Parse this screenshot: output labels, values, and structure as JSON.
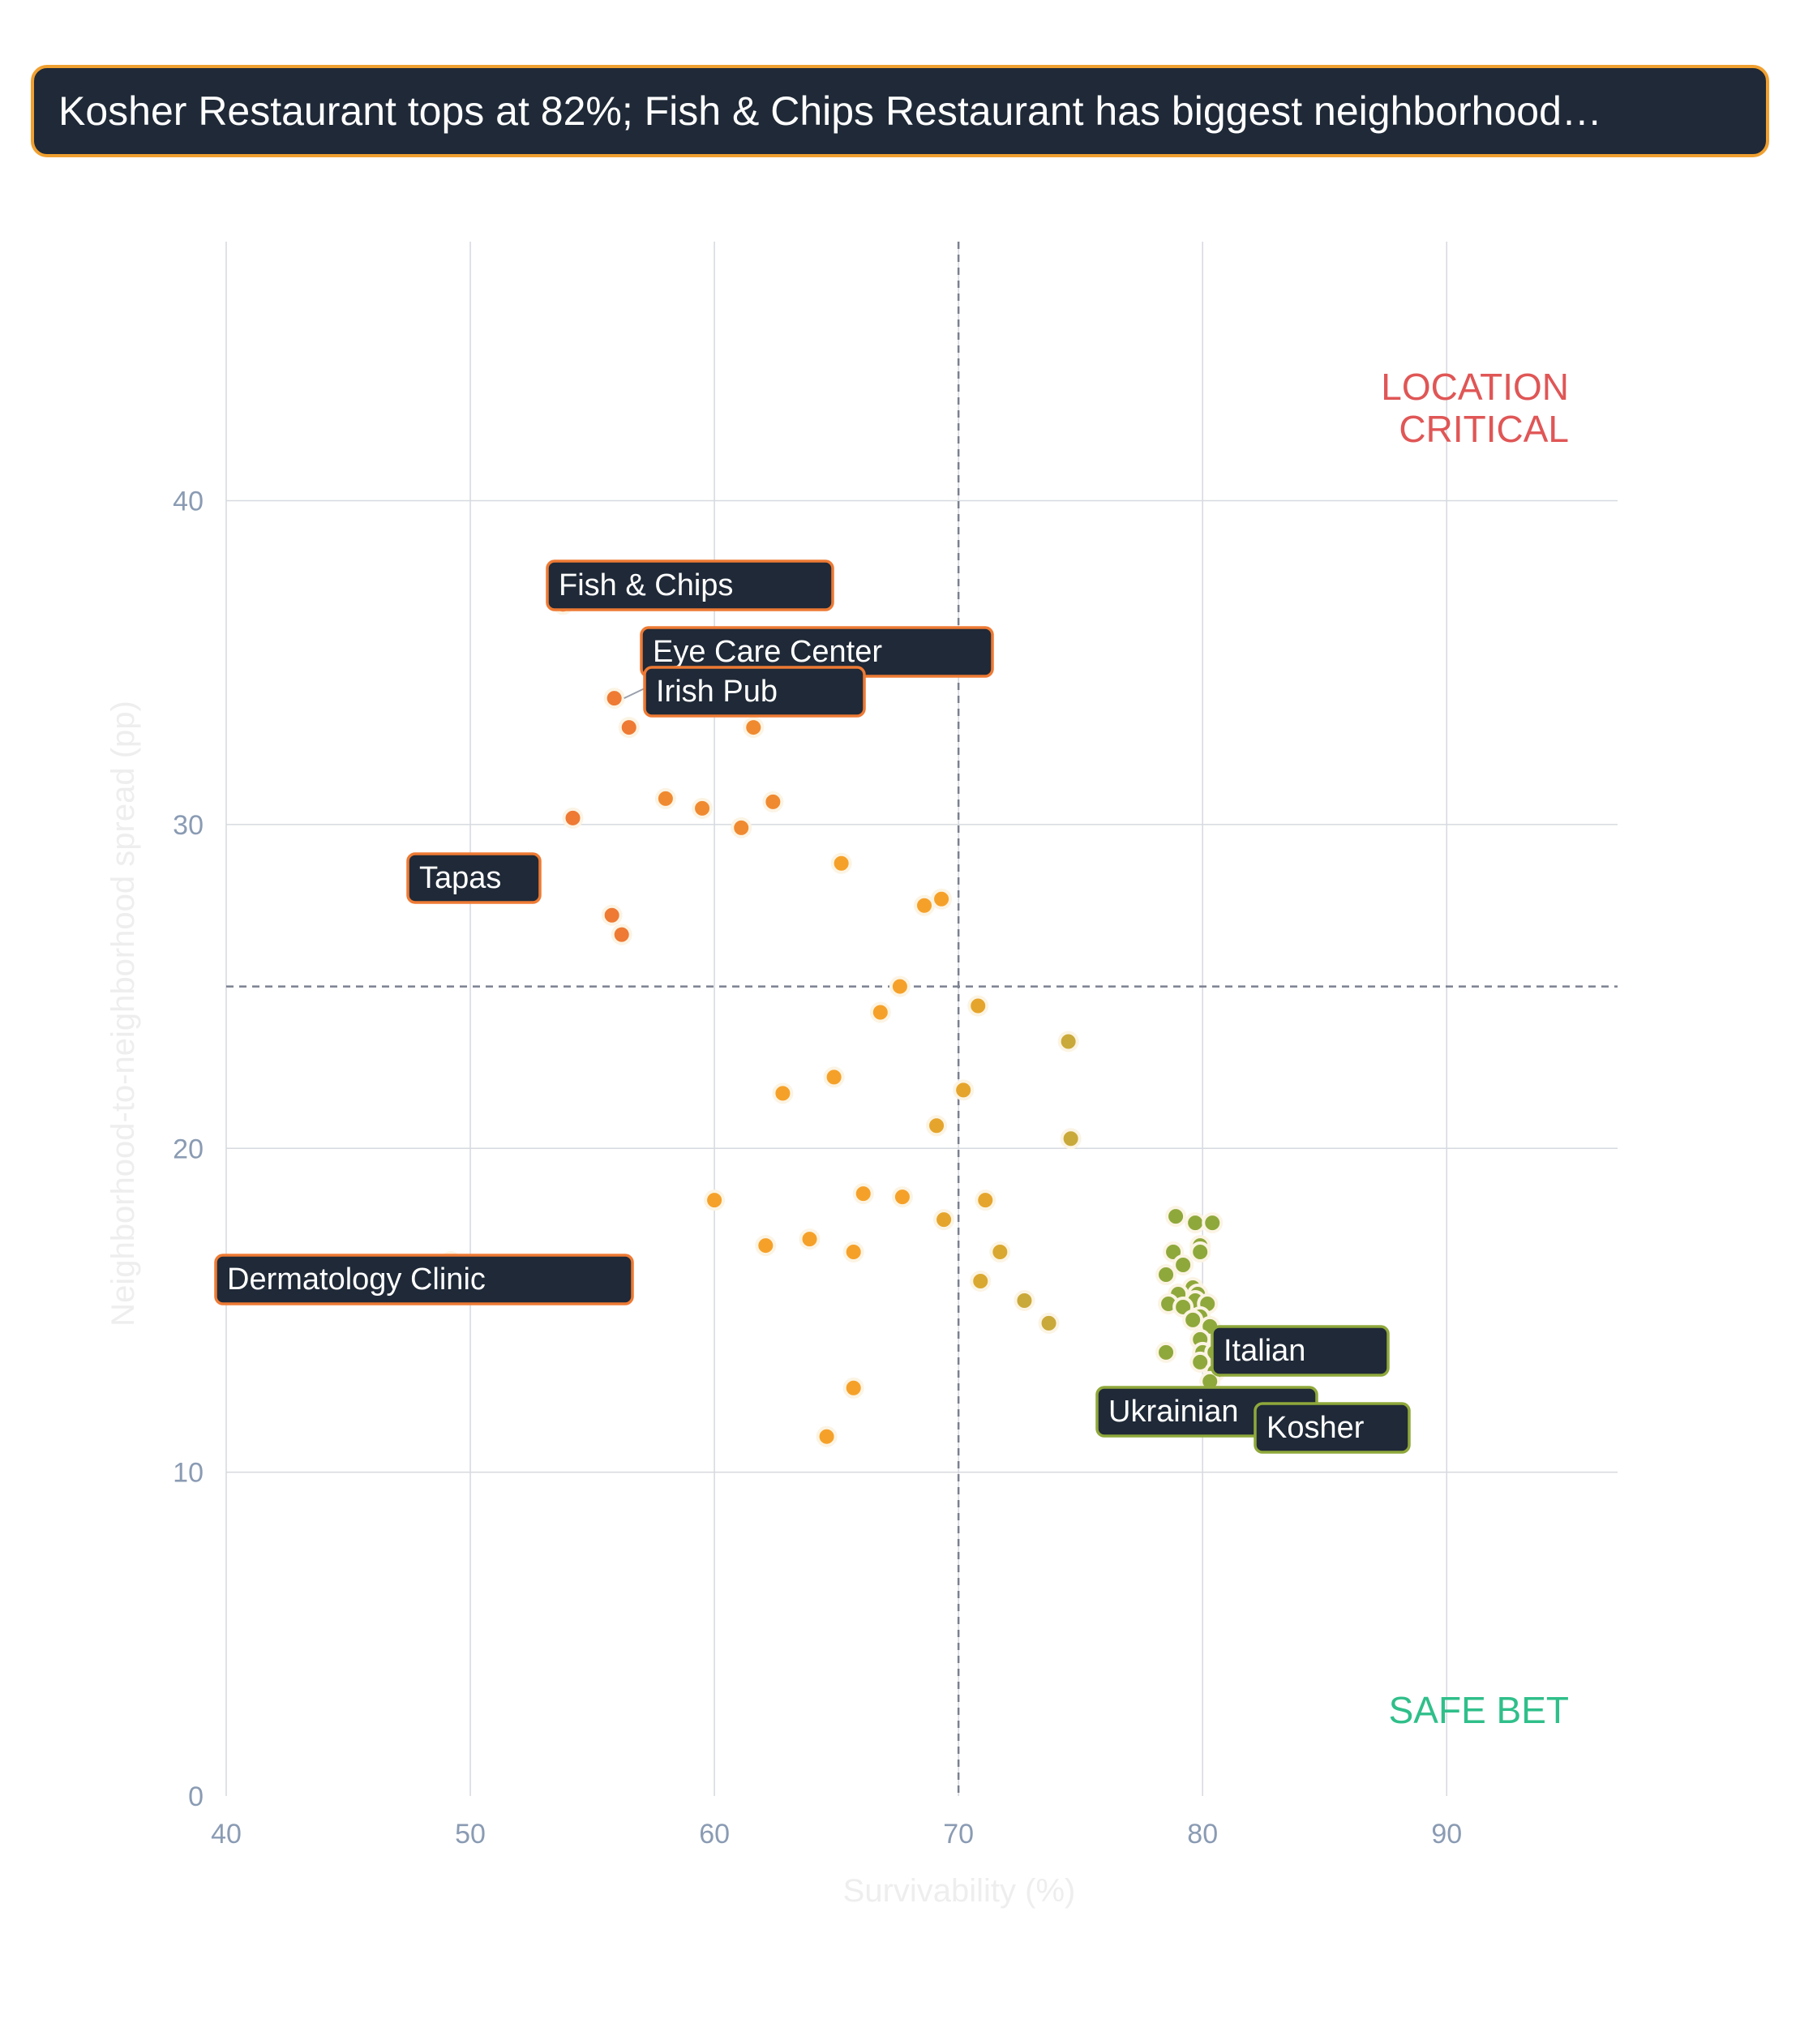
{
  "headline": "Kosher Restaurant tops at 82%; Fish & Chips Restaurant has biggest neighborhood…",
  "chart_data": {
    "type": "scatter",
    "xlabel": "Survivability (%)",
    "ylabel": "Neighborhood-to-neighborhood spread (pp)",
    "xlim": [
      40,
      97
    ],
    "ylim": [
      0,
      48
    ],
    "xticks": [
      "40",
      "50",
      "60",
      "70",
      "80",
      "90"
    ],
    "yticks": [
      "0",
      "10",
      "20",
      "30",
      "40"
    ],
    "reference_lines": {
      "x": 70,
      "y": 25
    },
    "quadrants": {
      "top_right": "LOCATION\nCRITICAL",
      "bottom_right": "SAFE BET"
    },
    "colors": {
      "orange_red": "#ee7a34",
      "orange": "#f5a129",
      "olive": "#c9a93a",
      "green": "#8fa83b",
      "safe_bet": "#2fbf8a",
      "location_critical": "#e05656"
    },
    "labels": [
      {
        "text": "Fish & Chips",
        "x": 53.8,
        "y": 36.8,
        "color": "#ee7a34"
      },
      {
        "text": "Eye Care Center",
        "x": 57.6,
        "y": 35.0,
        "color": "#ee7a34"
      },
      {
        "text": "Irish Pub",
        "x": 55.9,
        "y": 33.9,
        "color": "#ee7a34"
      },
      {
        "text": "Tapas",
        "x": 51.0,
        "y": 28.5,
        "color": "#ee7a34"
      },
      {
        "text": "Dermatology Clinic",
        "x": 49.2,
        "y": 16.5,
        "color": "#ee7a34"
      },
      {
        "text": "Italian",
        "x": 80.5,
        "y": 13.7,
        "color": "#8fa83b"
      },
      {
        "text": "Ukrainian",
        "x": 79.5,
        "y": 12.0,
        "color": "#8fa83b"
      },
      {
        "text": "Kosher",
        "x": 82.0,
        "y": 11.5,
        "color": "#8fa83b"
      }
    ],
    "points": [
      {
        "x": 53.8,
        "y": 36.8,
        "color": "#ee7a34"
      },
      {
        "x": 57.6,
        "y": 35.0,
        "color": "#ee7a34"
      },
      {
        "x": 55.9,
        "y": 33.9,
        "color": "#ee7a34"
      },
      {
        "x": 56.5,
        "y": 33.0,
        "color": "#ee7a34"
      },
      {
        "x": 61.6,
        "y": 33.0,
        "color": "#f08a30"
      },
      {
        "x": 54.2,
        "y": 30.2,
        "color": "#ee7a34"
      },
      {
        "x": 58.0,
        "y": 30.8,
        "color": "#f08a30"
      },
      {
        "x": 59.5,
        "y": 30.5,
        "color": "#f08a30"
      },
      {
        "x": 61.1,
        "y": 29.9,
        "color": "#f08a30"
      },
      {
        "x": 62.4,
        "y": 30.7,
        "color": "#f08a30"
      },
      {
        "x": 65.2,
        "y": 28.8,
        "color": "#f5a129"
      },
      {
        "x": 51.0,
        "y": 28.5,
        "color": "#ee7a34"
      },
      {
        "x": 55.8,
        "y": 27.2,
        "color": "#ee7a34"
      },
      {
        "x": 56.2,
        "y": 26.6,
        "color": "#ee7a34"
      },
      {
        "x": 68.6,
        "y": 27.5,
        "color": "#f5a129"
      },
      {
        "x": 69.3,
        "y": 27.7,
        "color": "#f5a129"
      },
      {
        "x": 67.6,
        "y": 25.0,
        "color": "#f5a129"
      },
      {
        "x": 66.8,
        "y": 24.2,
        "color": "#f5a129"
      },
      {
        "x": 70.8,
        "y": 24.4,
        "color": "#e5a52c"
      },
      {
        "x": 74.5,
        "y": 23.3,
        "color": "#c9a93a"
      },
      {
        "x": 64.9,
        "y": 22.2,
        "color": "#f5a129"
      },
      {
        "x": 62.8,
        "y": 21.7,
        "color": "#f5a129"
      },
      {
        "x": 70.2,
        "y": 21.8,
        "color": "#e5a52c"
      },
      {
        "x": 69.1,
        "y": 20.7,
        "color": "#e5a52c"
      },
      {
        "x": 74.6,
        "y": 20.3,
        "color": "#c9a93a"
      },
      {
        "x": 60.0,
        "y": 18.4,
        "color": "#f5a129"
      },
      {
        "x": 66.1,
        "y": 18.6,
        "color": "#f5a129"
      },
      {
        "x": 67.7,
        "y": 18.5,
        "color": "#f5a129"
      },
      {
        "x": 71.1,
        "y": 18.4,
        "color": "#e5a52c"
      },
      {
        "x": 69.4,
        "y": 17.8,
        "color": "#e5a52c"
      },
      {
        "x": 62.1,
        "y": 17.0,
        "color": "#f5a129"
      },
      {
        "x": 63.9,
        "y": 17.2,
        "color": "#f5a129"
      },
      {
        "x": 65.7,
        "y": 16.8,
        "color": "#f5a129"
      },
      {
        "x": 71.7,
        "y": 16.8,
        "color": "#d9a830"
      },
      {
        "x": 49.2,
        "y": 16.5,
        "color": "#ee7a34"
      },
      {
        "x": 70.9,
        "y": 15.9,
        "color": "#d9a830"
      },
      {
        "x": 72.7,
        "y": 15.3,
        "color": "#c9a93a"
      },
      {
        "x": 73.7,
        "y": 14.6,
        "color": "#c9a93a"
      },
      {
        "x": 65.7,
        "y": 12.6,
        "color": "#f5a129"
      },
      {
        "x": 64.6,
        "y": 11.1,
        "color": "#f5a129"
      },
      {
        "x": 78.9,
        "y": 17.9,
        "color": "#8fa83b"
      },
      {
        "x": 79.7,
        "y": 17.7,
        "color": "#8fa83b"
      },
      {
        "x": 80.4,
        "y": 17.7,
        "color": "#8fa83b"
      },
      {
        "x": 79.9,
        "y": 17.0,
        "color": "#8fa83b"
      },
      {
        "x": 78.8,
        "y": 16.8,
        "color": "#8fa83b"
      },
      {
        "x": 79.9,
        "y": 16.8,
        "color": "#8fa83b"
      },
      {
        "x": 79.2,
        "y": 16.4,
        "color": "#8fa83b"
      },
      {
        "x": 78.5,
        "y": 16.1,
        "color": "#8fa83b"
      },
      {
        "x": 79.6,
        "y": 15.7,
        "color": "#8fa83b"
      },
      {
        "x": 79.0,
        "y": 15.5,
        "color": "#8fa83b"
      },
      {
        "x": 79.8,
        "y": 15.5,
        "color": "#8fa83b"
      },
      {
        "x": 79.7,
        "y": 15.3,
        "color": "#8fa83b"
      },
      {
        "x": 80.2,
        "y": 15.2,
        "color": "#8fa83b"
      },
      {
        "x": 78.6,
        "y": 15.2,
        "color": "#8fa83b"
      },
      {
        "x": 79.2,
        "y": 15.1,
        "color": "#8fa83b"
      },
      {
        "x": 79.9,
        "y": 14.8,
        "color": "#8fa83b"
      },
      {
        "x": 79.6,
        "y": 14.7,
        "color": "#8fa83b"
      },
      {
        "x": 80.3,
        "y": 14.5,
        "color": "#8fa83b"
      },
      {
        "x": 79.9,
        "y": 14.1,
        "color": "#8fa83b"
      },
      {
        "x": 78.5,
        "y": 13.7,
        "color": "#8fa83b"
      },
      {
        "x": 80.0,
        "y": 13.7,
        "color": "#8fa83b"
      },
      {
        "x": 80.5,
        "y": 13.7,
        "color": "#8fa83b"
      },
      {
        "x": 79.9,
        "y": 13.4,
        "color": "#8fa83b"
      },
      {
        "x": 80.5,
        "y": 13.1,
        "color": "#8fa83b"
      },
      {
        "x": 80.3,
        "y": 12.8,
        "color": "#8fa83b"
      },
      {
        "x": 79.5,
        "y": 12.0,
        "color": "#8fa83b"
      },
      {
        "x": 82.0,
        "y": 11.5,
        "color": "#8fa83b"
      }
    ]
  }
}
